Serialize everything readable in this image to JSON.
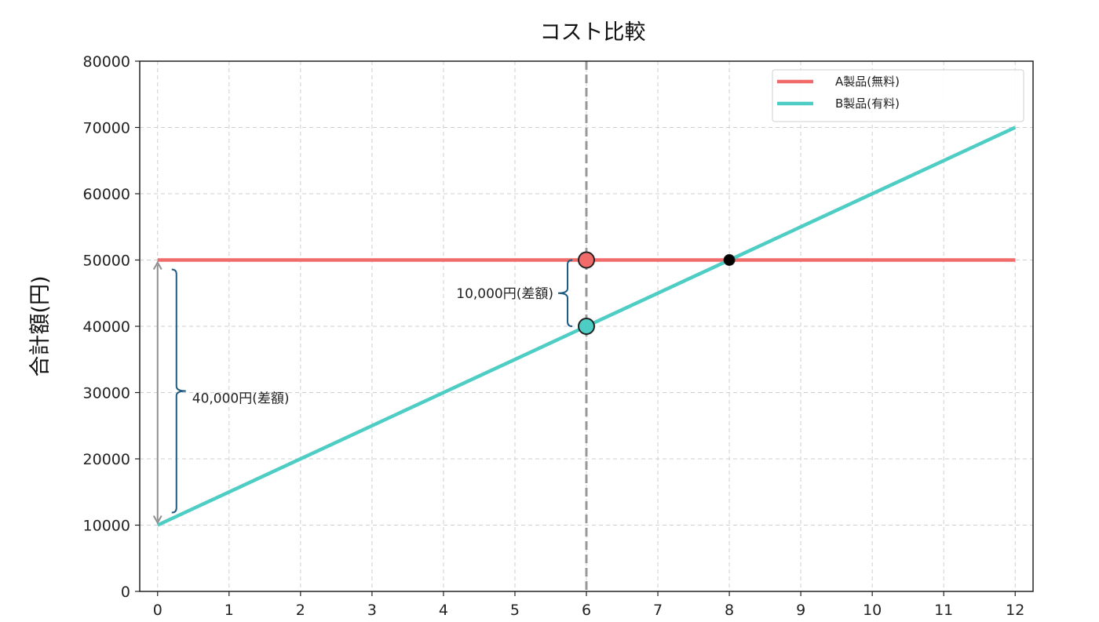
{
  "chart_data": {
    "type": "line",
    "title": "コスト比較",
    "xlabel": "",
    "ylabel": "合計額(円)",
    "xlim": [
      -0.25,
      12.25
    ],
    "ylim": [
      0,
      80000
    ],
    "x_ticks": [
      0,
      1,
      2,
      3,
      4,
      5,
      6,
      7,
      8,
      9,
      10,
      11,
      12
    ],
    "y_ticks": [
      0,
      10000,
      20000,
      30000,
      40000,
      50000,
      60000,
      70000,
      80000
    ],
    "grid": true,
    "legend_position": "top-right",
    "series": [
      {
        "name": "A製品(無料)",
        "color": "#f26b6b",
        "x": [
          0,
          12
        ],
        "y": [
          50000,
          50000
        ]
      },
      {
        "name": "B製品(有料)",
        "color": "#4ecdc4",
        "x": [
          0,
          12
        ],
        "y": [
          10000,
          70000
        ]
      }
    ],
    "vertical_line": {
      "x": 6,
      "color": "#999999",
      "style": "dashed"
    },
    "markers": [
      {
        "x": 6,
        "y": 50000,
        "color": "#f26b6b"
      },
      {
        "x": 6,
        "y": 40000,
        "color": "#4ecdc4"
      },
      {
        "x": 8,
        "y": 50000,
        "color": "#000000"
      }
    ],
    "annotations": [
      {
        "text": "40,000円(差額)",
        "x": 0,
        "y_from": 10000,
        "y_to": 50000
      },
      {
        "text": "10,000円(差額)",
        "x": 6,
        "y_from": 40000,
        "y_to": 50000
      }
    ]
  }
}
